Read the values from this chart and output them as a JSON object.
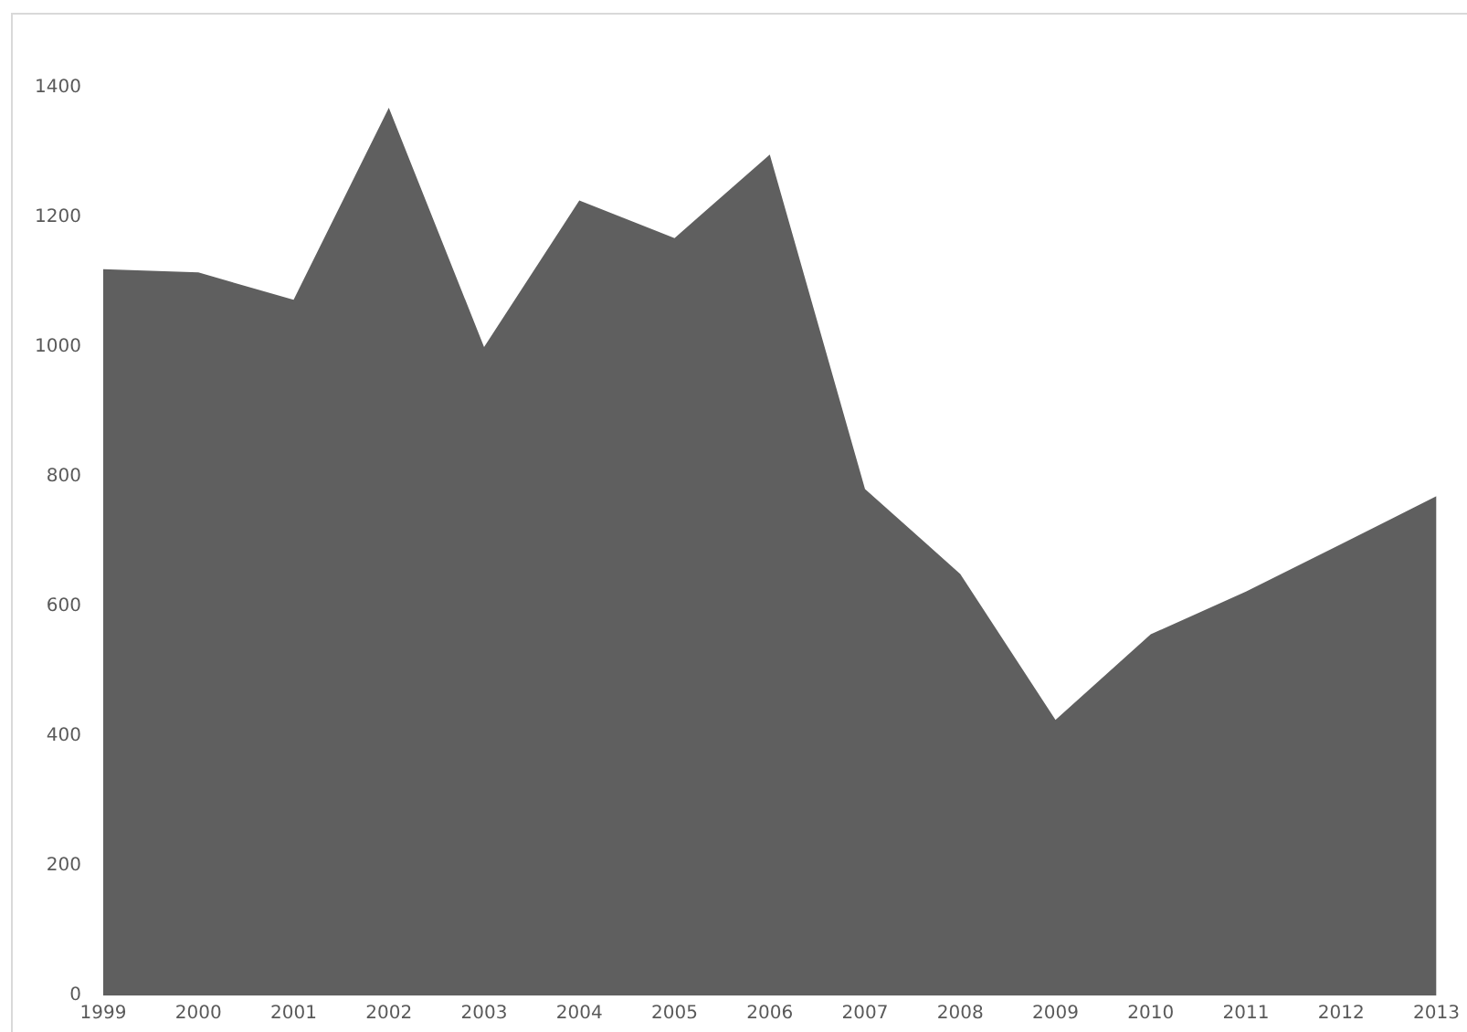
{
  "chart_data": {
    "type": "area",
    "categories": [
      "1999",
      "2000",
      "2001",
      "2002",
      "2003",
      "2004",
      "2005",
      "2006",
      "2007",
      "2008",
      "2009",
      "2010",
      "2011",
      "2012",
      "2013"
    ],
    "series": [
      {
        "color": "#5f5f5f",
        "values": [
          1120,
          1115,
          1073,
          1369,
          1000,
          1226,
          1168,
          1297,
          781,
          650,
          425,
          557,
          623,
          696,
          770
        ]
      }
    ],
    "ylim": [
      0,
      1400
    ],
    "yticks": [
      0,
      200,
      400,
      600,
      800,
      1000,
      1200,
      1400
    ],
    "grid": false,
    "legend": false
  }
}
